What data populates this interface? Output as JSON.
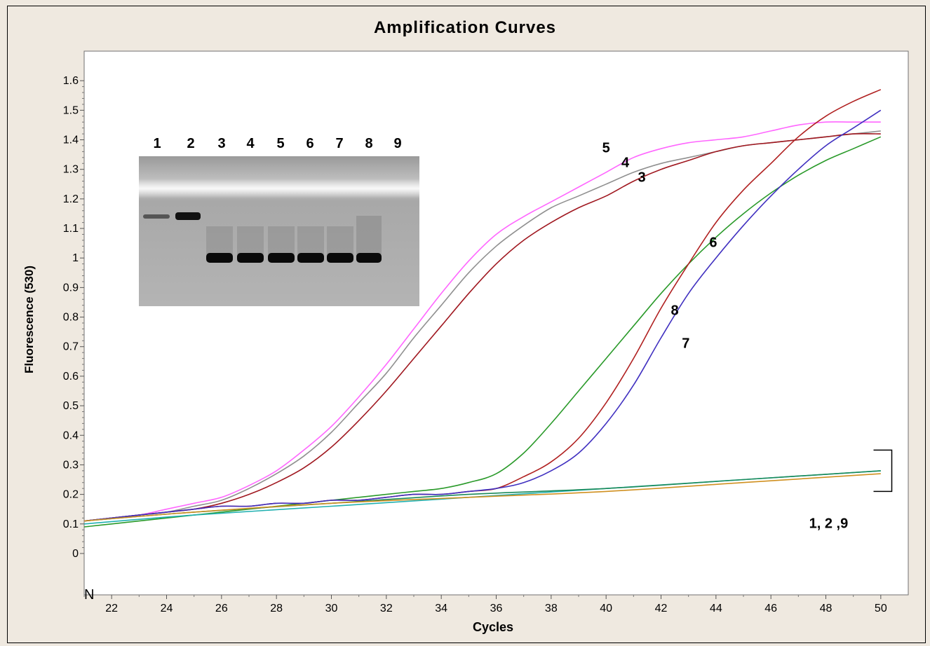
{
  "chart_data": {
    "type": "line",
    "title": "Amplification Curves",
    "xlabel": "Cycles",
    "ylabel": "Fluorescence (530)",
    "xlim": [
      21,
      51
    ],
    "ylim": [
      -0.14,
      1.7
    ],
    "xticks": [
      22,
      24,
      26,
      28,
      30,
      32,
      34,
      36,
      38,
      40,
      42,
      44,
      46,
      48,
      50
    ],
    "yticks": [
      0,
      0.1,
      0.2,
      0.3,
      0.4,
      0.5,
      0.6,
      0.7,
      0.8,
      0.9,
      1,
      1.1,
      1.2,
      1.3,
      1.4,
      1.5,
      1.6
    ],
    "ytick_labels": [
      "0",
      "0.1",
      "0.2",
      "0.3",
      "0.4",
      "0.5",
      "0.6",
      "0.7",
      "0.8",
      "0.9",
      "1",
      "1.1",
      "1.2",
      "1.3",
      "1.4",
      "1.5",
      "1.6"
    ],
    "xtick_labels": [
      "22",
      "24",
      "26",
      "28",
      "30",
      "32",
      "34",
      "36",
      "38",
      "40",
      "42",
      "44",
      "46",
      "48",
      "50"
    ],
    "grid": false,
    "corner_marker": "N",
    "series": [
      {
        "color": "#ff66ff",
        "x": [
          21,
          22,
          23,
          24,
          25,
          26,
          27,
          28,
          29,
          30,
          31,
          32,
          33,
          34,
          35,
          36,
          37,
          38,
          39,
          40,
          41,
          42,
          43,
          44,
          45,
          46,
          47,
          48,
          49,
          50
        ],
        "y": [
          0.11,
          0.12,
          0.13,
          0.15,
          0.17,
          0.19,
          0.23,
          0.28,
          0.35,
          0.43,
          0.53,
          0.64,
          0.76,
          0.88,
          0.99,
          1.08,
          1.14,
          1.19,
          1.24,
          1.29,
          1.34,
          1.37,
          1.39,
          1.4,
          1.41,
          1.43,
          1.45,
          1.46,
          1.46,
          1.46
        ]
      },
      {
        "color": "#909090",
        "x": [
          21,
          22,
          23,
          24,
          25,
          26,
          27,
          28,
          29,
          30,
          31,
          32,
          33,
          34,
          35,
          36,
          37,
          38,
          39,
          40,
          41,
          42,
          43,
          44,
          45,
          46,
          47,
          48,
          49,
          50
        ],
        "y": [
          0.11,
          0.12,
          0.13,
          0.14,
          0.16,
          0.18,
          0.22,
          0.27,
          0.33,
          0.41,
          0.51,
          0.61,
          0.73,
          0.84,
          0.95,
          1.04,
          1.11,
          1.17,
          1.21,
          1.25,
          1.29,
          1.32,
          1.34,
          1.36,
          1.38,
          1.39,
          1.4,
          1.41,
          1.42,
          1.43
        ]
      },
      {
        "color": "#a01820",
        "x": [
          21,
          22,
          23,
          24,
          25,
          26,
          27,
          28,
          29,
          30,
          31,
          32,
          33,
          34,
          35,
          36,
          37,
          38,
          39,
          40,
          41,
          42,
          43,
          44,
          45,
          46,
          47,
          48,
          49,
          50
        ],
        "y": [
          0.11,
          0.12,
          0.13,
          0.14,
          0.15,
          0.17,
          0.2,
          0.24,
          0.29,
          0.36,
          0.45,
          0.55,
          0.66,
          0.77,
          0.88,
          0.98,
          1.06,
          1.12,
          1.17,
          1.21,
          1.26,
          1.3,
          1.33,
          1.36,
          1.38,
          1.39,
          1.4,
          1.41,
          1.42,
          1.42
        ]
      },
      {
        "color": "#2a9a2a",
        "x": [
          21,
          22,
          23,
          24,
          25,
          26,
          27,
          28,
          29,
          30,
          31,
          32,
          33,
          34,
          35,
          36,
          37,
          38,
          39,
          40,
          41,
          42,
          43,
          44,
          45,
          46,
          47,
          48,
          49,
          50
        ],
        "y": [
          0.09,
          0.1,
          0.11,
          0.12,
          0.13,
          0.14,
          0.15,
          0.16,
          0.17,
          0.18,
          0.19,
          0.2,
          0.21,
          0.22,
          0.24,
          0.27,
          0.34,
          0.44,
          0.55,
          0.66,
          0.77,
          0.88,
          0.98,
          1.07,
          1.15,
          1.22,
          1.28,
          1.33,
          1.37,
          1.41
        ]
      },
      {
        "color": "#b02020",
        "x": [
          21,
          22,
          23,
          24,
          25,
          26,
          27,
          28,
          29,
          30,
          31,
          32,
          33,
          34,
          35,
          36,
          37,
          38,
          39,
          40,
          41,
          42,
          43,
          44,
          45,
          46,
          47,
          48,
          49,
          50
        ],
        "y": [
          0.11,
          0.12,
          0.13,
          0.14,
          0.15,
          0.16,
          0.16,
          0.17,
          0.17,
          0.18,
          0.18,
          0.19,
          0.2,
          0.2,
          0.21,
          0.22,
          0.26,
          0.31,
          0.39,
          0.51,
          0.66,
          0.83,
          0.98,
          1.12,
          1.23,
          1.32,
          1.41,
          1.48,
          1.53,
          1.57
        ]
      },
      {
        "color": "#4030c0",
        "x": [
          21,
          22,
          23,
          24,
          25,
          26,
          27,
          28,
          29,
          30,
          31,
          32,
          33,
          34,
          35,
          36,
          37,
          38,
          39,
          40,
          41,
          42,
          43,
          44,
          45,
          46,
          47,
          48,
          49,
          50
        ],
        "y": [
          0.11,
          0.12,
          0.13,
          0.14,
          0.15,
          0.16,
          0.16,
          0.17,
          0.17,
          0.18,
          0.18,
          0.19,
          0.2,
          0.2,
          0.21,
          0.22,
          0.24,
          0.28,
          0.34,
          0.44,
          0.57,
          0.73,
          0.88,
          1.0,
          1.11,
          1.21,
          1.3,
          1.38,
          1.44,
          1.5
        ]
      },
      {
        "color": "#20b0b0",
        "x": [
          21,
          25,
          30,
          35,
          40,
          45,
          50
        ],
        "y": [
          0.1,
          0.13,
          0.16,
          0.19,
          0.22,
          0.25,
          0.28
        ]
      },
      {
        "color": "#1a8a5a",
        "x": [
          21,
          25,
          30,
          35,
          40,
          45,
          50
        ],
        "y": [
          0.11,
          0.14,
          0.17,
          0.2,
          0.22,
          0.25,
          0.28
        ]
      },
      {
        "color": "#d09020",
        "x": [
          21,
          25,
          30,
          35,
          40,
          45,
          50
        ],
        "y": [
          0.11,
          0.14,
          0.17,
          0.19,
          0.21,
          0.24,
          0.27
        ]
      }
    ],
    "curve_labels": [
      {
        "text": "5",
        "x": 40.0,
        "y": 1.37
      },
      {
        "text": "4",
        "x": 40.7,
        "y": 1.32
      },
      {
        "text": "3",
        "x": 41.3,
        "y": 1.27
      },
      {
        "text": "6",
        "x": 43.9,
        "y": 1.05
      },
      {
        "text": "8",
        "x": 42.5,
        "y": 0.82
      },
      {
        "text": "7",
        "x": 42.9,
        "y": 0.71
      },
      {
        "text": "1, 2 ,9",
        "x": 48.1,
        "y": 0.1
      }
    ],
    "bracket": {
      "x": 50.4,
      "y_top": 0.35,
      "y_bottom": 0.21
    },
    "inset": {
      "description": "Agarose gel electrophoresis image",
      "lane_labels": [
        "1",
        "2",
        "3",
        "4",
        "5",
        "6",
        "7",
        "8",
        "9"
      ]
    }
  }
}
